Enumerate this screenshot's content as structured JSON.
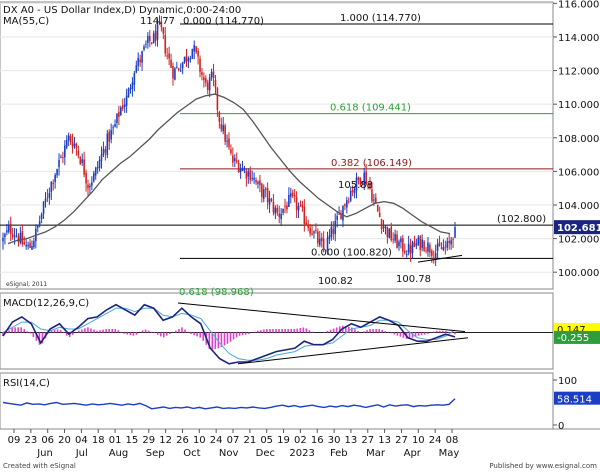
{
  "chart_data": [
    {
      "type": "candlestick",
      "title": "DX A0 - US Dollar Index,D) Dynamic,0:00-24:00",
      "indicator_label": "MA(55,C)",
      "ylim": [
        99.0,
        116.2
      ],
      "yticks": [
        100.0,
        102.0,
        104.0,
        106.0,
        108.0,
        110.0,
        112.0,
        114.0,
        116.0
      ],
      "ytick_labels": [
        "100.000",
        "102.000",
        "104.000",
        "106.000",
        "108.000",
        "110.000",
        "112.000",
        "114.000",
        "116.000"
      ],
      "last_price_label": "102.681",
      "last_price": 102.681,
      "fib_levels": [
        {
          "label": "1.000 (114.770)",
          "value": 114.77,
          "color": "#000000"
        },
        {
          "label": "0.618 (109.441)",
          "value": 109.441,
          "color": "#2e9e3a"
        },
        {
          "label": "0.382 (106.149)",
          "value": 106.149,
          "color": "#8b1a1a"
        },
        {
          "label": "0.000 (100.820)",
          "value": 100.82,
          "color": "#000000"
        },
        {
          "label": "(102.800)",
          "value": 102.8,
          "color": "#000000"
        }
      ],
      "annotations": [
        {
          "text": "114.77",
          "value": 114.77
        },
        {
          "text": "0.000 (114.770)",
          "value": 114.77
        },
        {
          "text": "105.88",
          "value": 105.88
        },
        {
          "text": "100.82",
          "value": 100.82
        },
        {
          "text": "100.78",
          "value": 100.78
        }
      ],
      "partial_label": "0.618 (98.968)",
      "watermark": "eSignal, 2011",
      "trend_close": [
        101.9,
        102.6,
        102.3,
        101.7,
        101.4,
        102.3,
        103.6,
        104.9,
        106.0,
        106.9,
        108.0,
        107.6,
        106.6,
        105.2,
        105.8,
        106.9,
        107.9,
        108.6,
        109.8,
        110.4,
        112.1,
        112.7,
        113.6,
        113.9,
        114.6,
        113.0,
        111.9,
        112.3,
        112.8,
        113.4,
        112.2,
        111.0,
        111.6,
        109.2,
        107.9,
        106.6,
        106.4,
        106.0,
        105.8,
        105.0,
        104.6,
        104.0,
        103.4,
        103.9,
        104.3,
        103.9,
        103.2,
        102.6,
        101.9,
        101.3,
        102.2,
        103.0,
        104.0,
        104.8,
        105.3,
        105.9,
        105.0,
        103.8,
        102.8,
        102.2,
        101.8,
        101.5,
        101.3,
        101.6,
        101.8,
        101.5,
        101.2,
        101.4,
        101.5,
        102.681
      ],
      "ma_line": [
        101.7,
        101.9,
        102.0,
        102.2,
        102.4,
        102.7,
        103.1,
        103.6,
        104.2,
        104.8,
        105.5,
        106.0,
        106.5,
        106.9,
        107.4,
        107.9,
        108.5,
        109.0,
        109.5,
        109.9,
        110.3,
        110.5,
        110.6,
        110.4,
        110.1,
        109.7,
        109.0,
        108.2,
        107.4,
        106.7,
        106.0,
        105.4,
        104.9,
        104.4,
        104.0,
        103.6,
        103.3,
        103.5,
        103.8,
        104.1,
        104.2,
        104.1,
        103.8,
        103.4,
        103.0,
        102.7,
        102.4,
        102.3
      ]
    },
    {
      "type": "line",
      "title": "MACD(12,26,9,C)",
      "value_labels": [
        "0.147",
        "-0.255"
      ],
      "macd_line": [
        -0.2,
        0.6,
        0.9,
        0.5,
        -0.6,
        0.2,
        0.5,
        -0.1,
        0.3,
        0.8,
        0.9,
        1.3,
        1.6,
        1.3,
        1.0,
        1.6,
        1.4,
        0.7,
        0.9,
        1.4,
        0.9,
        0.5,
        -0.9,
        -1.5,
        -1.8,
        -1.7,
        -1.7,
        -1.5,
        -1.3,
        -1.1,
        -1.0,
        -0.9,
        -0.5,
        -0.7,
        -0.7,
        -0.4,
        0.2,
        0.5,
        0.3,
        0.6,
        0.9,
        0.7,
        0.4,
        -0.3,
        -0.5,
        -0.5,
        -0.3,
        -0.1,
        -0.255
      ],
      "signal_line": [
        0.0,
        0.3,
        0.6,
        0.6,
        0.2,
        0.1,
        0.3,
        0.2,
        0.2,
        0.5,
        0.8,
        1.1,
        1.4,
        1.4,
        1.2,
        1.4,
        1.4,
        1.0,
        0.9,
        1.1,
        1.0,
        0.8,
        0.1,
        -0.6,
        -1.2,
        -1.5,
        -1.6,
        -1.6,
        -1.5,
        -1.3,
        -1.2,
        -1.1,
        -0.8,
        -0.7,
        -0.7,
        -0.6,
        -0.2,
        0.2,
        0.3,
        0.4,
        0.7,
        0.7,
        0.6,
        0.1,
        -0.3,
        -0.4,
        -0.4,
        -0.2,
        0.147
      ],
      "histogram": [
        -0.2,
        0.3,
        0.3,
        -0.1,
        -0.8,
        0.1,
        0.2,
        -0.3,
        0.1,
        0.3,
        0.1,
        0.2,
        0.2,
        -0.1,
        -0.2,
        0.2,
        0.0,
        -0.3,
        0.0,
        0.3,
        -0.1,
        -0.3,
        -1.0,
        -0.9,
        -0.6,
        -0.2,
        -0.1,
        0.1,
        0.2,
        0.2,
        0.2,
        0.2,
        0.3,
        0.0,
        0.0,
        0.2,
        0.4,
        0.3,
        0.0,
        0.2,
        0.2,
        0.0,
        -0.2,
        -0.4,
        -0.2,
        -0.1,
        0.1,
        0.1,
        -0.1
      ],
      "ylim": [
        -2.1,
        2.1
      ]
    },
    {
      "type": "line",
      "title": "RSI(14,C)",
      "value_label": "58.514",
      "yticks": [
        100,
        0
      ],
      "ytick_labels": [
        "100",
        "0"
      ],
      "ylim": [
        0,
        100
      ],
      "rsi_line": [
        50,
        48,
        46,
        44,
        49,
        46,
        47,
        45,
        48,
        50,
        46,
        47,
        48,
        46,
        44,
        47,
        45,
        46,
        48,
        46,
        44,
        47,
        45,
        48,
        43,
        36,
        38,
        40,
        37,
        39,
        38,
        40,
        37,
        39,
        36,
        38,
        40,
        37,
        38,
        37,
        39,
        38,
        40,
        38,
        37,
        39,
        42,
        44,
        41,
        43,
        40,
        42,
        44,
        41,
        39,
        42,
        40,
        43,
        41,
        44,
        42,
        39,
        42,
        45,
        40,
        45,
        42,
        44,
        45,
        41,
        43,
        42,
        44,
        45,
        44,
        46,
        58.514
      ]
    }
  ],
  "x_axis": {
    "day_ticks": [
      "09",
      "23",
      "06",
      "20",
      "04",
      "18",
      "01",
      "15",
      "29",
      "12",
      "26",
      "10",
      "24",
      "07",
      "21",
      "05",
      "19",
      "02",
      "16",
      "30",
      "13",
      "27",
      "13",
      "27",
      "10",
      "24",
      "08"
    ],
    "month_labels": [
      "Jun",
      "Jul",
      "Aug",
      "Sep",
      "Oct",
      "Nov",
      "Dec",
      "2023",
      "Feb",
      "Mar",
      "Apr",
      "May"
    ]
  },
  "footer": {
    "left": "Created with eSignal",
    "right": "Published by www.esignal.com"
  }
}
